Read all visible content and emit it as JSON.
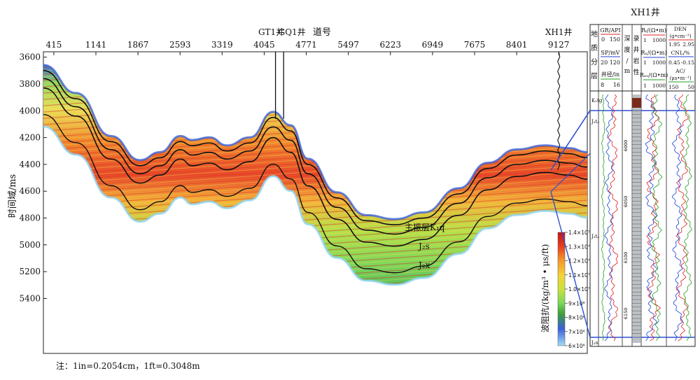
{
  "note": "注：1in=0.2054cm，1ft=0.3048m",
  "colorbar": {
    "label": "波阻抗/(kg/m³ • μs/ft)",
    "ticks": [
      "1.4×10⁷",
      "1.3×10⁷",
      "1.2×10⁷",
      "1.1×10⁷",
      "1.0×10⁷",
      "9×10⁶",
      "8×10⁶",
      "7×10⁶",
      "6×10⁶"
    ],
    "colors": [
      "#d81e1e",
      "#ee5a24",
      "#f5a623",
      "#f3d43a",
      "#c9e23c",
      "#7ed957",
      "#3c9a3c",
      "#3a62d8",
      "#8fd3f5"
    ]
  },
  "chart_data": [
    {
      "type": "heatmap",
      "title": "",
      "xlabel": "道号",
      "ylabel": "时间域/ms",
      "x_ticks": [
        "415",
        "1141",
        "1867",
        "2593",
        "3319",
        "4045",
        "4771",
        "5497",
        "6223",
        "6949",
        "7675",
        "8401",
        "9127"
      ],
      "y_ticks": [
        3600,
        3800,
        4000,
        4200,
        4400,
        4600,
        4800,
        5000,
        5200,
        5400
      ],
      "ylim": [
        3560,
        5810
      ],
      "xlim": [
        235,
        9620
      ],
      "wells": [
        {
          "name": "GT1井",
          "trace": 4240
        },
        {
          "name": "GQ1井",
          "trace": 4380
        },
        {
          "name": "XH1井",
          "trace": 9127
        }
      ],
      "annotations": [
        "主振层K₁q",
        "J₂s",
        "J₂x"
      ],
      "horizons": [
        {
          "name": "top",
          "x": [
            235,
            800,
            1400,
            1900,
            2250,
            2600,
            2800,
            3100,
            3400,
            3800,
            4200,
            4500,
            4800,
            5300,
            5800,
            6300,
            6800,
            7400,
            7900,
            8400,
            8900,
            9300,
            9620
          ],
          "y": [
            3700,
            3910,
            4230,
            4410,
            4350,
            4230,
            4260,
            4240,
            4300,
            4240,
            4050,
            4150,
            4400,
            4650,
            4820,
            4850,
            4800,
            4620,
            4430,
            4330,
            4300,
            4320,
            4350
          ]
        },
        {
          "name": "h1",
          "x": [
            235,
            800,
            1400,
            1900,
            2250,
            2600,
            2800,
            3100,
            3400,
            3800,
            4200,
            4500,
            4800,
            5300,
            5800,
            6300,
            6800,
            7400,
            7900,
            8400,
            8900,
            9300,
            9620
          ],
          "y": [
            3760,
            3970,
            4290,
            4470,
            4410,
            4290,
            4330,
            4310,
            4360,
            4300,
            4120,
            4220,
            4470,
            4720,
            4890,
            4920,
            4870,
            4690,
            4500,
            4400,
            4370,
            4390,
            4420
          ]
        },
        {
          "name": "h2",
          "x": [
            235,
            800,
            1400,
            1900,
            2250,
            2600,
            2800,
            3100,
            3400,
            3800,
            4200,
            4500,
            4800,
            5300,
            5800,
            6300,
            6800,
            7400,
            7900,
            8400,
            8900,
            9300,
            9620
          ],
          "y": [
            3830,
            4040,
            4360,
            4540,
            4480,
            4360,
            4410,
            4390,
            4440,
            4380,
            4200,
            4310,
            4560,
            4810,
            4980,
            5010,
            4960,
            4780,
            4590,
            4490,
            4460,
            4480,
            4510
          ]
        }
      ]
    },
    {
      "type": "table",
      "title": "XH1井",
      "columns": [
        "地质分层",
        "GR/API",
        "SP/mV",
        "井径/in",
        "深度/m",
        "录井岩性",
        "Rt/(Ω•m)",
        "Rx/(Ω•m)",
        "Rxo/(Ω•m)",
        "DEN/(g•cm⁻³)",
        "CNL/%",
        "AC/(μs•m⁻¹)"
      ],
      "ranges": {
        "GR": [
          0,
          150
        ],
        "SP": [
          20,
          120
        ],
        "caliper": [
          8,
          16
        ],
        "Rt": [
          1,
          1000
        ],
        "Rx": [
          1,
          1000
        ],
        "Rxo": [
          1,
          1000
        ],
        "DEN": [
          1.95,
          2.95
        ],
        "CNL": [
          0.45,
          -0.15
        ],
        "AC": [
          150,
          50
        ]
      },
      "layers": [
        "K₁tg",
        "J₃t₃",
        "J₃t₂",
        "J₃s"
      ],
      "depth_ticks": [
        "6000",
        "6050",
        "6100",
        "6150"
      ]
    }
  ]
}
